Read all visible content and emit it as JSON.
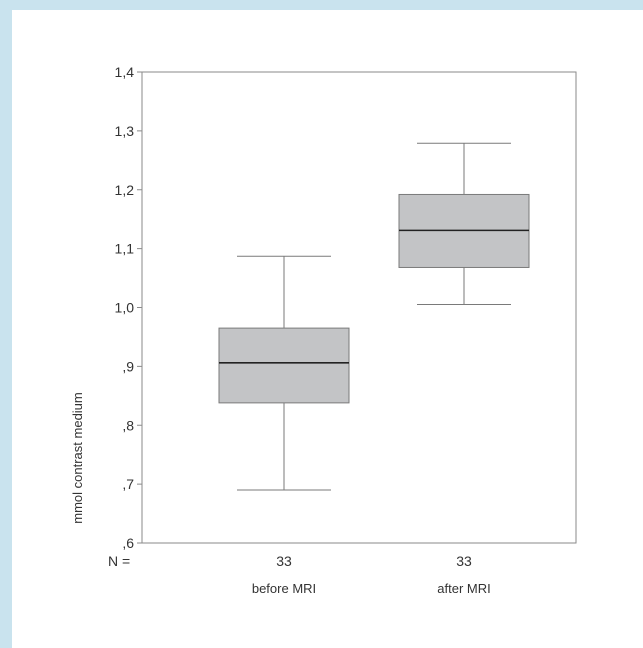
{
  "chart_data": {
    "type": "boxplot",
    "ylabel": "mmol contrast medium",
    "ylim": [
      0.6,
      1.4
    ],
    "yticks": [
      0.6,
      0.7,
      0.8,
      0.9,
      1.0,
      1.1,
      1.2,
      1.3,
      1.4
    ],
    "ytick_labels": [
      ",6",
      ",7",
      ",8",
      ",9",
      "1,0",
      "1,1",
      "1,2",
      "1,3",
      "1,4"
    ],
    "n_label": "N =",
    "grid": false,
    "categories": [
      "before MRI",
      "after MRI"
    ],
    "boxes": [
      {
        "category": "before MRI",
        "n": "33",
        "whisker_low": 0.69,
        "q1": 0.838,
        "median": 0.906,
        "q3": 0.965,
        "whisker_high": 1.087
      },
      {
        "category": "after MRI",
        "n": "33",
        "whisker_low": 1.005,
        "q1": 1.068,
        "median": 1.131,
        "q3": 1.192,
        "whisker_high": 1.279
      }
    ],
    "colors": {
      "box_fill": "#c3c4c6",
      "line": "#7a7a7a",
      "median": "#222222",
      "frame_bg": "#c9e3ee"
    }
  }
}
